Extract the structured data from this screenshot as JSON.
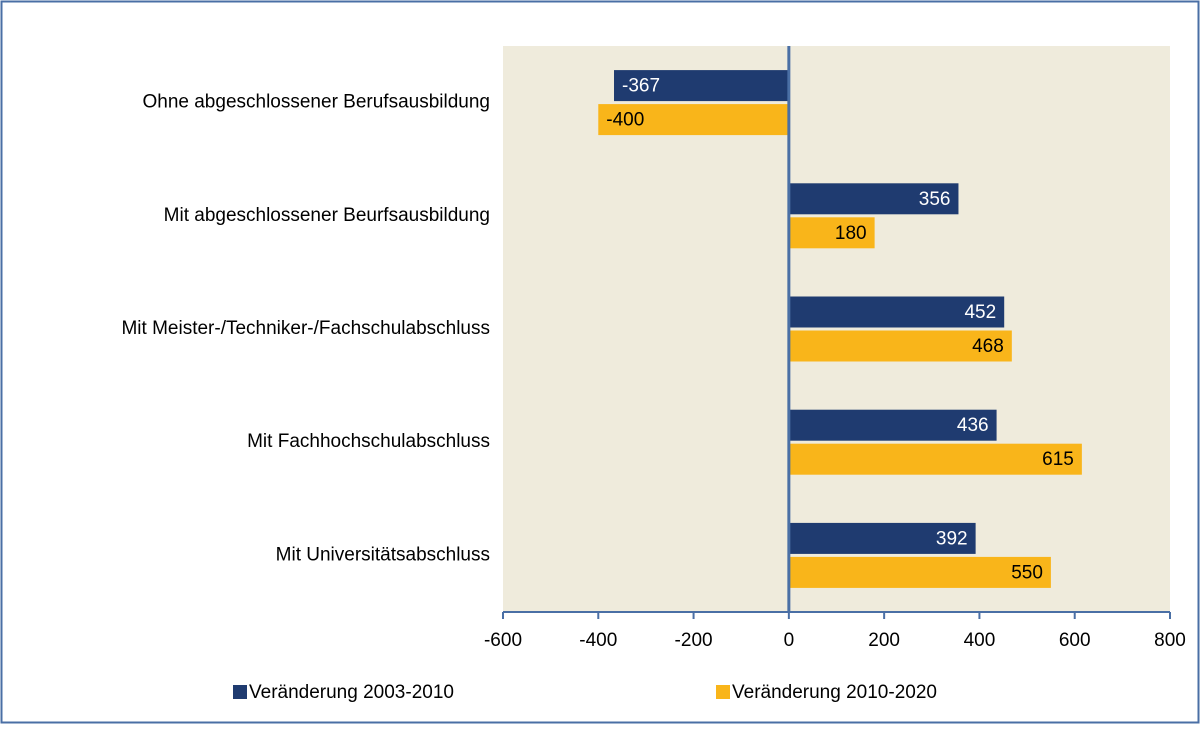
{
  "chart_data": {
    "type": "hbar",
    "categories": [
      "Ohne abgeschlossener Berufsausbildung",
      "Mit abgeschlossener Beurfsausbildung",
      "Mit Meister-/Techniker-/Fachschulabschluss",
      "Mit Fachhochschulabschluss",
      "Mit Universitätsabschluss"
    ],
    "series": [
      {
        "name": "Veränderung 2003-2010",
        "color": "#1f3b70",
        "values": [
          -367,
          356,
          452,
          436,
          392
        ]
      },
      {
        "name": "Veränderung 2010-2020",
        "color": "#f9b51a",
        "values": [
          -400,
          180,
          468,
          615,
          550
        ]
      }
    ],
    "xlim": [
      -600,
      800
    ],
    "xticks": [
      -600,
      -400,
      -200,
      0,
      200,
      400,
      600,
      800
    ],
    "legend": "bottom"
  }
}
